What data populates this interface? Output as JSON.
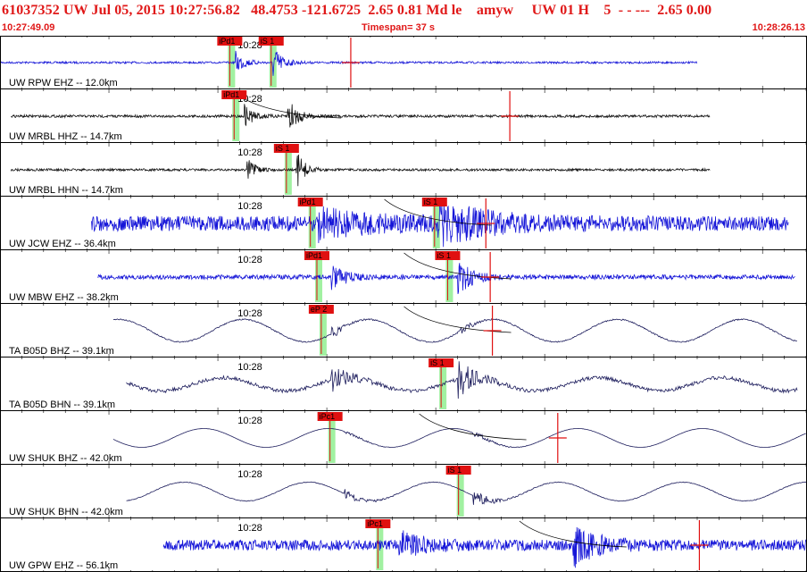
{
  "header": {
    "line1": "61037352 UW Jul 05, 2015 10:27:56.82   48.4753 -121.6725  2.65 0.81 Md le    amyw     UW 01 H    5  - - ---  2.65 0.00",
    "start_time": "10:27:49.09",
    "timespan": "Timespan=  37 s",
    "end_time": "10:28:26.13"
  },
  "colors": {
    "header_text": "#e01818",
    "trace_blue": "#1616d8",
    "trace_black": "#111111",
    "trace_navy": "#1c1c5c",
    "pick_flag": "#e01010",
    "pick_window": "#90ee90",
    "coda_curve": "#000000",
    "amplitude_mark": "#e01010"
  },
  "chart_data": {
    "type": "waveform",
    "x_unit": "seconds since 10:27:49.09",
    "xlim": [
      0,
      37.04
    ],
    "minute_label": "10:28",
    "traces": [
      {
        "label": "UW RPW EHZ -- 12.0km",
        "color": "blue",
        "style": "impulsive",
        "data_start": 0,
        "data_end": 32.0,
        "onset": 10.8,
        "s_onset": 12.5,
        "noise": 0.05,
        "amplitude": 0.75,
        "decay": 0.1,
        "low_freq": 0,
        "picks": [
          {
            "label": "iPd1",
            "t": 10.3
          },
          {
            "label": "iS 1",
            "t": 12.2
          }
        ],
        "amp_mark": 16.1,
        "coda": false
      },
      {
        "label": "UW MRBL HHZ -- 14.7km",
        "color": "black",
        "style": "impulsive",
        "data_start": 0.5,
        "data_end": 32.6,
        "onset": 11.2,
        "s_onset": 13.2,
        "noise": 0.06,
        "amplitude": 0.8,
        "decay": 0.1,
        "low_freq": 0,
        "picks": [
          {
            "label": "iPd1",
            "t": 10.5
          }
        ],
        "amp_mark": 23.4,
        "coda": true
      },
      {
        "label": "UW MRBL HHN -- 14.7km",
        "color": "black",
        "style": "impulsive",
        "data_start": 0.5,
        "data_end": 32.6,
        "onset": 11.3,
        "s_onset": 13.6,
        "noise": 0.05,
        "amplitude": 0.85,
        "decay": 0.12,
        "low_freq": 0,
        "picks": [
          {
            "label": "iS 1",
            "t": 12.9
          }
        ],
        "amp_mark": null,
        "coda": false
      },
      {
        "label": "UW JCW EHZ -- 36.4km",
        "color": "blue",
        "style": "noisy",
        "data_start": 4.2,
        "data_end": 36.2,
        "onset": 14.6,
        "s_onset": 20.1,
        "noise": 0.35,
        "amplitude": 0.8,
        "decay": 0.02,
        "low_freq": 0,
        "picks": [
          {
            "label": "iPd1",
            "t": 14.0
          },
          {
            "label": "iS 1",
            "t": 19.7
          }
        ],
        "amp_mark": 22.3,
        "coda": true
      },
      {
        "label": "UW MBW EHZ -- 38.2km",
        "color": "blue",
        "style": "noisy",
        "data_start": 4.5,
        "data_end": 36.5,
        "onset": 15.2,
        "s_onset": 21.0,
        "noise": 0.1,
        "amplitude": 0.85,
        "decay": 0.07,
        "low_freq": 0,
        "picks": [
          {
            "label": "iPd1",
            "t": 14.3
          },
          {
            "label": "iS 1",
            "t": 20.3
          }
        ],
        "amp_mark": 22.5,
        "coda": true
      },
      {
        "label": "TA B05D BHZ -- 39.1km",
        "color": "navy",
        "style": "broadband",
        "data_start": 5.2,
        "data_end": 36.6,
        "onset": 15.2,
        "s_onset": 21.0,
        "noise": 0.05,
        "amplitude": 0.45,
        "decay": 0.1,
        "low_freq": 0.6,
        "picks": [
          {
            "label": "eP 2",
            "t": 14.5
          }
        ],
        "amp_mark": 22.6,
        "coda": true
      },
      {
        "label": "TA B05D BHN -- 39.1km",
        "color": "navy",
        "style": "broadband",
        "data_start": 5.8,
        "data_end": 36.6,
        "onset": 15.2,
        "s_onset": 21.0,
        "noise": 0.08,
        "amplitude": 0.85,
        "decay": 0.06,
        "low_freq": 0.35,
        "picks": [
          {
            "label": "iS 1",
            "t": 20.0
          }
        ],
        "amp_mark": null,
        "coda": false
      },
      {
        "label": "UW SHUK BHZ -- 42.0km",
        "color": "navy",
        "style": "broadband",
        "data_start": 5.2,
        "data_end": 37.0,
        "onset": 15.8,
        "s_onset": 21.7,
        "noise": 0.02,
        "amplitude": 0.15,
        "decay": 0.05,
        "low_freq": 0.5,
        "picks": [
          {
            "label": "iPc1",
            "t": 14.9
          }
        ],
        "amp_mark": 25.6,
        "coda": true
      },
      {
        "label": "UW SHUK BHN -- 42.0km",
        "color": "navy",
        "style": "broadband",
        "data_start": 5.8,
        "data_end": 37.0,
        "onset": 15.8,
        "s_onset": 21.7,
        "noise": 0.03,
        "amplitude": 0.4,
        "decay": 0.06,
        "low_freq": 0.5,
        "picks": [
          {
            "label": "iS 1",
            "t": 20.8
          }
        ],
        "amp_mark": null,
        "coda": false
      },
      {
        "label": "UW GPW EHZ -- 56.1km",
        "color": "blue",
        "style": "noisy",
        "data_start": 7.5,
        "data_end": 37.04,
        "onset": 18.3,
        "s_onset": 26.3,
        "noise": 0.25,
        "amplitude": 0.8,
        "decay": 0.04,
        "low_freq": 0,
        "picks": [
          {
            "label": "iPc1",
            "t": 17.1
          }
        ],
        "amp_mark": 32.1,
        "coda": true
      }
    ]
  }
}
